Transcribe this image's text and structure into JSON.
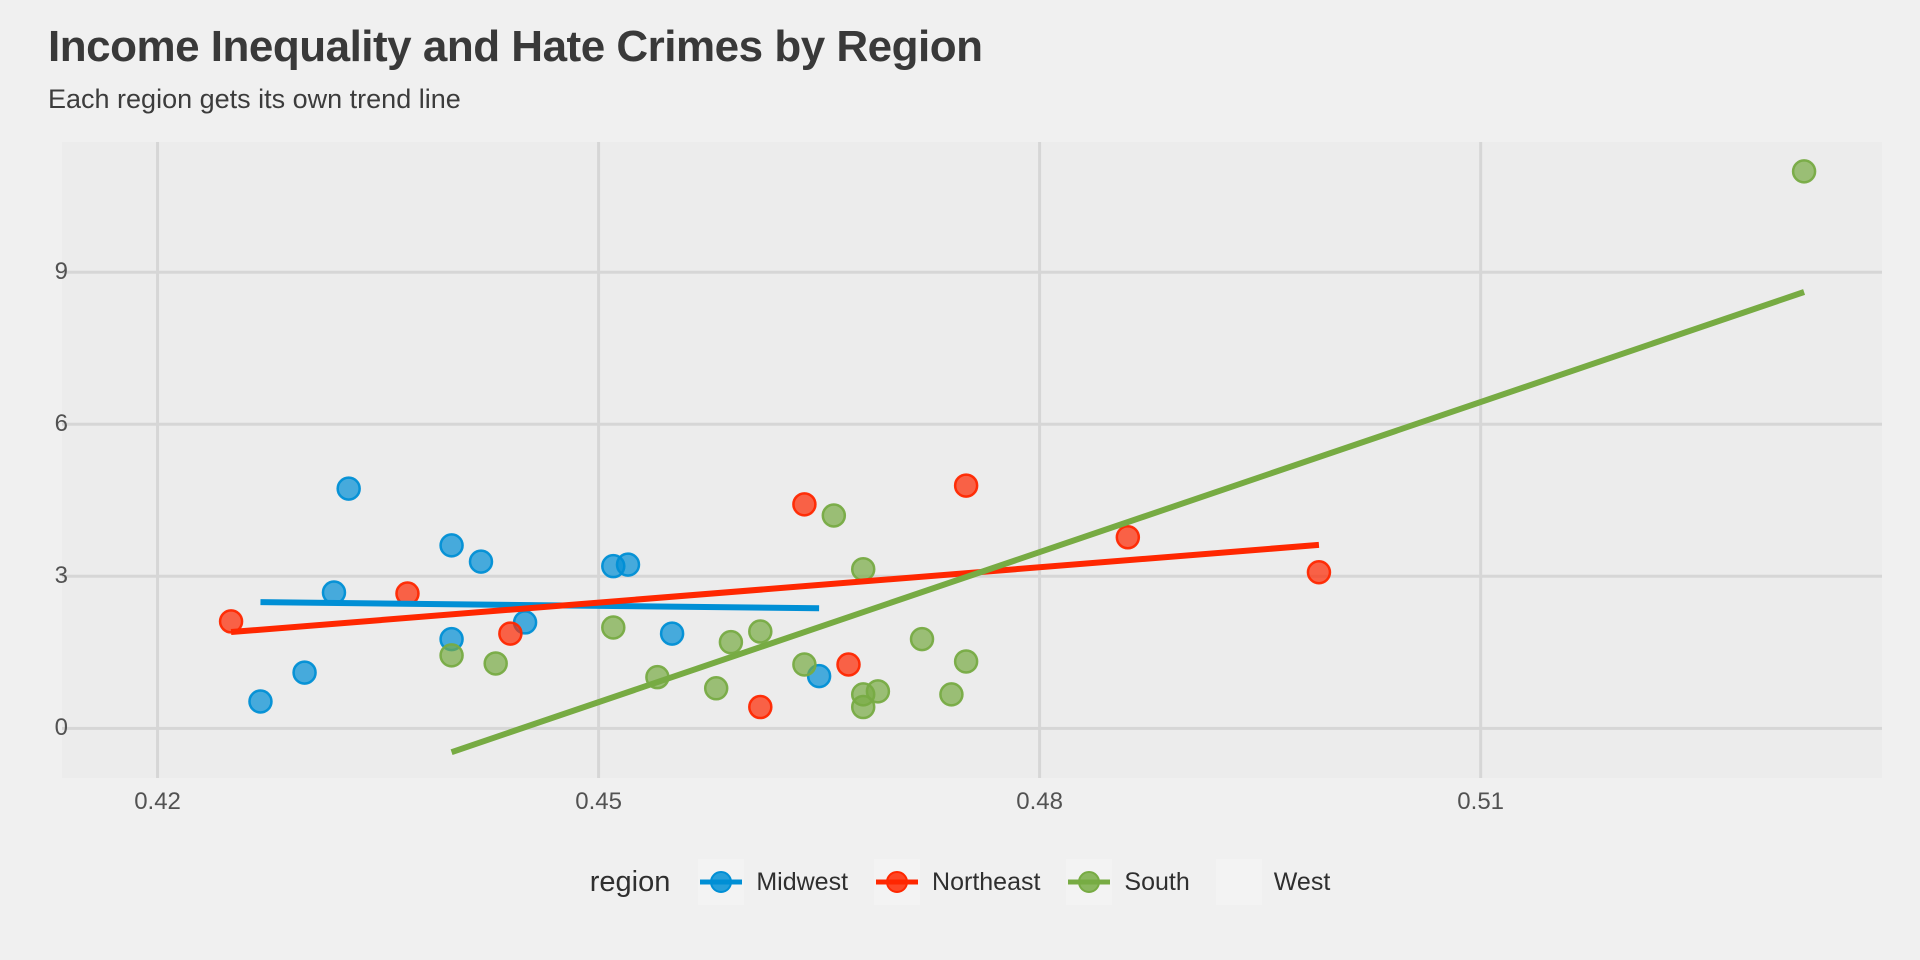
{
  "colors": {
    "background": "#F0F0F0",
    "panel": "#ECECEC",
    "gridline": "#D6D6D6",
    "title_text": "#393939",
    "tick_text": "#525252",
    "midwest": "#008FD5",
    "northeast": "#FF2700",
    "south": "#77AB43",
    "west": "#171717"
  },
  "chart_data": {
    "type": "scatter",
    "title": "Income Inequality and Hate Crimes by Region",
    "subtitle": "Each region gets its own trend line",
    "xlabel": "",
    "ylabel": "",
    "xlim": [
      0.4135,
      0.5373
    ],
    "ylim": [
      -0.98,
      11.57
    ],
    "grid": true,
    "x_ticks": [
      {
        "label": "0.42",
        "value": 0.42
      },
      {
        "label": "0.45",
        "value": 0.45
      },
      {
        "label": "0.48",
        "value": 0.48
      },
      {
        "label": "0.51",
        "value": 0.51
      }
    ],
    "y_ticks": [
      {
        "label": "0",
        "value": 0
      },
      {
        "label": "3",
        "value": 3
      },
      {
        "label": "6",
        "value": 6
      },
      {
        "label": "9",
        "value": 9
      }
    ],
    "legend": {
      "title": "region",
      "position": "bottom"
    },
    "series": [
      {
        "name": "Midwest",
        "color": "#008FD5",
        "points": [
          [
            0.433,
            4.73
          ],
          [
            0.44,
            3.61
          ],
          [
            0.442,
            3.29
          ],
          [
            0.451,
            3.2
          ],
          [
            0.452,
            3.23
          ],
          [
            0.432,
            2.68
          ],
          [
            0.445,
            2.09
          ],
          [
            0.455,
            1.87
          ],
          [
            0.44,
            1.76
          ],
          [
            0.465,
            1.03
          ],
          [
            0.43,
            1.1
          ],
          [
            0.427,
            0.53
          ]
        ],
        "trend": [
          [
            0.427,
            2.49
          ],
          [
            0.465,
            2.37
          ]
        ]
      },
      {
        "name": "Northeast",
        "color": "#FF2700",
        "points": [
          [
            0.425,
            2.11
          ],
          [
            0.437,
            2.66
          ],
          [
            0.444,
            1.87
          ],
          [
            0.461,
            0.42
          ],
          [
            0.467,
            1.26
          ],
          [
            0.464,
            4.42
          ],
          [
            0.475,
            4.79
          ],
          [
            0.486,
            3.77
          ],
          [
            0.499,
            3.08
          ]
        ],
        "trend": [
          [
            0.425,
            1.9
          ],
          [
            0.499,
            3.62
          ]
        ]
      },
      {
        "name": "South",
        "color": "#77AB43",
        "points": [
          [
            0.44,
            1.44
          ],
          [
            0.443,
            1.28
          ],
          [
            0.451,
            1.99
          ],
          [
            0.454,
            1.01
          ],
          [
            0.458,
            0.79
          ],
          [
            0.459,
            1.7
          ],
          [
            0.461,
            1.91
          ],
          [
            0.464,
            1.26
          ],
          [
            0.466,
            4.2
          ],
          [
            0.468,
            3.14
          ],
          [
            0.468,
            0.67
          ],
          [
            0.469,
            0.73
          ],
          [
            0.468,
            0.42
          ],
          [
            0.472,
            1.76
          ],
          [
            0.475,
            1.32
          ],
          [
            0.474,
            0.67
          ],
          [
            0.532,
            10.99
          ]
        ],
        "trend": [
          [
            0.44,
            -0.47
          ],
          [
            0.532,
            8.61
          ]
        ]
      },
      {
        "name": "West",
        "color": "#171717",
        "points": [],
        "trend": null
      }
    ]
  }
}
